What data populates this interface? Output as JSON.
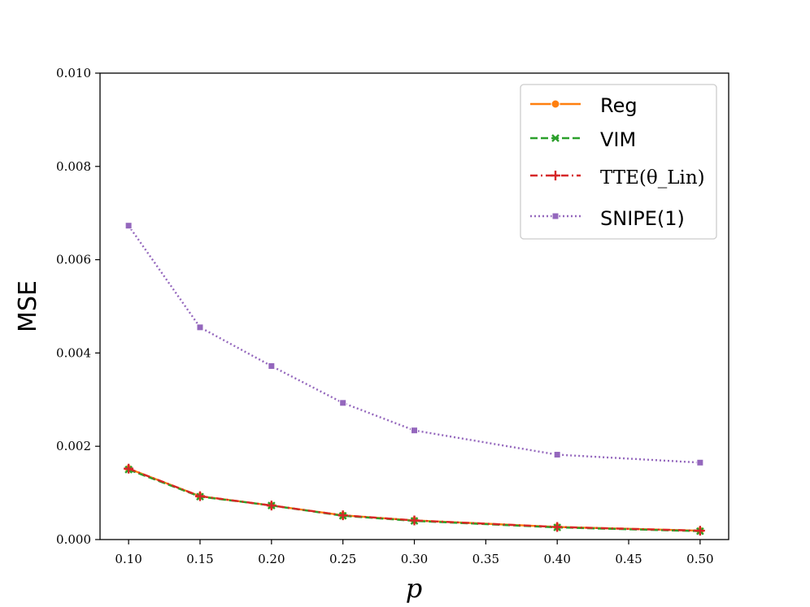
{
  "chart_data": {
    "type": "line",
    "xlabel": "p",
    "ylabel": "MSE",
    "xlim": [
      0.08,
      0.52
    ],
    "ylim": [
      0.0,
      0.01
    ],
    "xticks": [
      "0.10",
      "0.15",
      "0.20",
      "0.25",
      "0.30",
      "0.35",
      "0.40",
      "0.45",
      "0.50"
    ],
    "yticks": [
      "0.000",
      "0.002",
      "0.004",
      "0.006",
      "0.008",
      "0.010"
    ],
    "x": [
      0.1,
      0.15,
      0.2,
      0.25,
      0.3,
      0.4,
      0.5
    ],
    "grid": false,
    "legend_position": "top-right",
    "series": [
      {
        "name": "Reg",
        "values": [
          0.00152,
          0.00093,
          0.00073,
          0.00052,
          0.00041,
          0.00027,
          0.00019
        ],
        "color": "#ff7f0e",
        "dash": "solid",
        "marker": "circle"
      },
      {
        "name": "VIM",
        "values": [
          0.0015,
          0.00092,
          0.00073,
          0.00051,
          0.0004,
          0.00026,
          0.00018
        ],
        "color": "#2ca02c",
        "dash": "dashed",
        "marker": "x"
      },
      {
        "name": "TTE(θ_Lin)",
        "values": [
          0.00152,
          0.00093,
          0.00073,
          0.00052,
          0.00041,
          0.00027,
          0.00019
        ],
        "color": "#d62728",
        "dash": "dashdot",
        "marker": "plus"
      },
      {
        "name": "SNIPE(1)",
        "values": [
          0.00673,
          0.00455,
          0.00372,
          0.00293,
          0.00234,
          0.00182,
          0.00165
        ],
        "color": "#9467bd",
        "dash": "dotted",
        "marker": "square"
      }
    ]
  }
}
